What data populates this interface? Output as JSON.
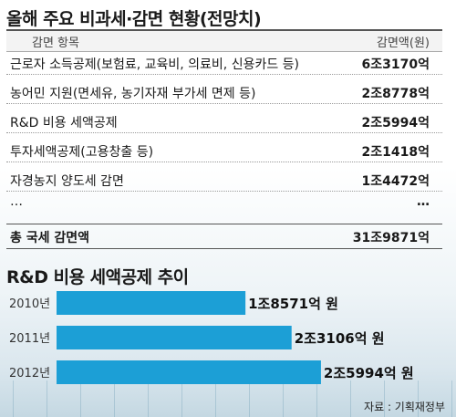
{
  "table": {
    "title": "올해 주요 비과세·감면 현황(전망치)",
    "header": {
      "item": "감면 항목",
      "amount": "감면액(원)"
    },
    "rows": [
      {
        "item": "근로자 소득공제(보험료, 교육비, 의료비, 신용카드 등)",
        "amount": "6조3170억"
      },
      {
        "item": "농어민 지원(면세유, 농기자재 부가세 면제 등)",
        "amount": "2조8778억"
      },
      {
        "item": "R&D 비용 세액공제",
        "amount": "2조5994억"
      },
      {
        "item": "투자세액공제(고용창출 등)",
        "amount": "2조1418억"
      },
      {
        "item": "자경농지 양도세 감면",
        "amount": "1조4472억"
      },
      {
        "item": "…",
        "amount": "…"
      }
    ],
    "total": {
      "item": "총 국세 감면액",
      "amount": "31조9871억"
    }
  },
  "chart_data": {
    "type": "bar",
    "orientation": "horizontal",
    "title": "R&D 비용 세액공제 추이",
    "categories": [
      "2010년",
      "2011년",
      "2012년"
    ],
    "values": [
      18571,
      23106,
      25994
    ],
    "unit": "억 원",
    "data_labels": [
      "1조8571억 원",
      "2조3106억 원",
      "2조5994억 원"
    ],
    "bar_color": "#1c9fd6",
    "xlim": [
      0,
      26000
    ]
  },
  "source": "자료 : 기획재정부"
}
